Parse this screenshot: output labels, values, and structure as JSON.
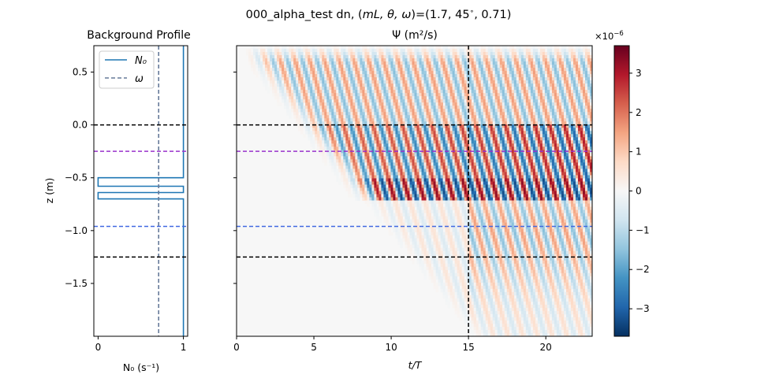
{
  "figure": {
    "suptitle_plain": "000_alpha_test dn, (",
    "suptitle_vars": "mL, θ, ω",
    "suptitle_vals": ")=(1.7, 45",
    "suptitle_deg": "∘",
    "suptitle_end": ", 0.71)"
  },
  "chart_data": [
    {
      "type": "line",
      "title": "Background Profile",
      "xlabel": "N₀ (s⁻¹)",
      "ylabel": "z (m)",
      "xlim": [
        -0.05,
        1.05
      ],
      "ylim": [
        -2.0,
        0.75
      ],
      "xticks": [
        "0",
        "1"
      ],
      "yticks": [
        "0.5",
        "0.0",
        "−0.5",
        "−1.0",
        "−1.5"
      ],
      "ytick_values": [
        0.5,
        0.0,
        -0.5,
        -1.0,
        -1.5
      ],
      "xtick_values": [
        0,
        1
      ],
      "legend": {
        "placement": "upper-left",
        "entries": [
          "N₀",
          "ω"
        ]
      },
      "series": [
        {
          "name": "N₀",
          "color": "#1f77b4",
          "style": "solid",
          "x": [
            1,
            1,
            0,
            0,
            1,
            1,
            0,
            0,
            1,
            1
          ],
          "y": [
            0.75,
            -0.5,
            -0.5,
            -0.58,
            -0.58,
            -0.64,
            -0.64,
            -0.7,
            -0.7,
            -2.0
          ]
        },
        {
          "name": "ω",
          "color": "#667a99",
          "style": "dashed",
          "x": [
            0.71,
            0.71
          ],
          "y": [
            0.75,
            -2.0
          ]
        }
      ],
      "hlines": [
        {
          "y": 0.0,
          "color": "#000000"
        },
        {
          "y": -0.25,
          "color": "#9932cc"
        },
        {
          "y": -0.96,
          "color": "#4169e1"
        },
        {
          "y": -1.25,
          "color": "#000000"
        }
      ]
    },
    {
      "type": "heatmap",
      "title": "Ψ (m²/s)",
      "xlabel": "t/T",
      "xlim": [
        0,
        23
      ],
      "ylim": [
        -2.0,
        0.75
      ],
      "xticks": [
        "0",
        "5",
        "10",
        "15",
        "20"
      ],
      "xtick_values": [
        0,
        5,
        10,
        15,
        20
      ],
      "colormap": "RdBu_r",
      "colorbar": {
        "range": [
          -3.7,
          3.7
        ],
        "ticks": [
          "3",
          "2",
          "1",
          "0",
          "−1",
          "−2",
          "−3"
        ],
        "tick_values": [
          3,
          2,
          1,
          0,
          -1,
          -2,
          -3
        ],
        "multiplier": "×10",
        "exponent": "−6"
      },
      "field": {
        "wave_front_start_t": 1.0,
        "wave_front_speed": 0.18,
        "peak_amplitude": 3.5,
        "band_center_z": -0.6,
        "transmission_start_t": 15
      },
      "hlines": [
        {
          "y": 0.0,
          "color": "#000000"
        },
        {
          "y": -0.25,
          "color": "#9932cc"
        },
        {
          "y": -0.96,
          "color": "#4169e1"
        },
        {
          "y": -1.25,
          "color": "#000000"
        }
      ],
      "vlines": [
        {
          "x": 15,
          "color": "#000000"
        }
      ]
    }
  ]
}
